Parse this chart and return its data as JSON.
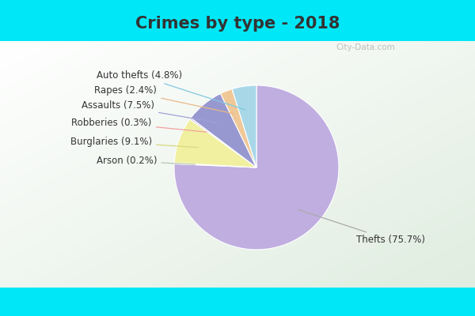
{
  "title": "Crimes by type - 2018",
  "title_fontsize": 15,
  "title_fontweight": "bold",
  "title_color": "#333333",
  "slices": [
    {
      "label": "Thefts",
      "pct": 75.7,
      "color": "#c0aee0"
    },
    {
      "label": "Arson",
      "pct": 0.2,
      "color": "#c0aee0"
    },
    {
      "label": "Burglaries",
      "pct": 9.1,
      "color": "#f0f0a0"
    },
    {
      "label": "Robberies",
      "pct": 0.3,
      "color": "#c0aee0"
    },
    {
      "label": "Assaults",
      "pct": 7.5,
      "color": "#9898d0"
    },
    {
      "label": "Rapes",
      "pct": 2.4,
      "color": "#f0c898"
    },
    {
      "label": "Auto thefts",
      "pct": 4.8,
      "color": "#a8d8e8"
    }
  ],
  "cyan_color": "#00e8f8",
  "inner_bg_top_right": "#f0f8f8",
  "inner_bg_bottom_left": "#c8e8c8",
  "label_fontsize": 8.5,
  "label_color": "#333333",
  "arrow_color_map": {
    "Thefts": "#aaaaaa",
    "Arson": "#b8c8b0",
    "Burglaries": "#d8d880",
    "Robberies": "#f0a0a0",
    "Assaults": "#a0a0d8",
    "Rapes": "#e8b888",
    "Auto thefts": "#80c8e0"
  },
  "watermark": "City-Data.com"
}
